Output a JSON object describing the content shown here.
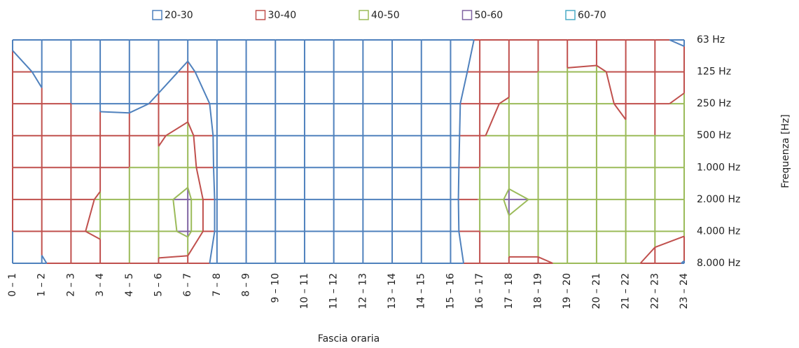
{
  "chart_data": {
    "type": "contour",
    "x_label": "Fascia oraria",
    "y_label": "Frequenza   [Hz]",
    "categories": [
      "0 – 1",
      "1 – 2",
      "2 – 3",
      "3 – 4",
      "4 – 5",
      "5 – 6",
      "6 – 7",
      "7 – 8",
      "8 – 9",
      "9 – 10",
      "10 – 11",
      "11 – 12",
      "12 – 13",
      "13 – 14",
      "14 – 15",
      "15 – 16",
      "16 – 17",
      "17 – 18",
      "18 – 19",
      "19 – 20",
      "20 – 21",
      "21 – 22",
      "22 – 23",
      "23 – 24"
    ],
    "y_categories": [
      "63 Hz",
      "125 Hz",
      "250 Hz",
      "500 Hz",
      "1.000 Hz",
      "2.000 Hz",
      "4.000 Hz",
      "8.000 Hz"
    ],
    "levels": [
      20,
      30,
      40,
      50,
      60,
      70
    ],
    "series": [
      {
        "name": "20-30",
        "color": "#4f81bd"
      },
      {
        "name": "30-40",
        "color": "#c0504d"
      },
      {
        "name": "40-50",
        "color": "#9bbb59"
      },
      {
        "name": "50-60",
        "color": "#8064a2"
      },
      {
        "name": "60-70",
        "color": "#4bacc6"
      }
    ],
    "z": [
      [
        29,
        28,
        27,
        27,
        27,
        27,
        28,
        26,
        25,
        25,
        25,
        25,
        25,
        25,
        25,
        26,
        31,
        32,
        33,
        33,
        32,
        30,
        31,
        29
      ],
      [
        32,
        29,
        28,
        28,
        30,
        28,
        31,
        27,
        25,
        25,
        25,
        25,
        25,
        25,
        25,
        26,
        33,
        36,
        40,
        41,
        42,
        36,
        35,
        34
      ],
      [
        33,
        31,
        30,
        29,
        28,
        31,
        36,
        28,
        25,
        25,
        25,
        25,
        25,
        25,
        25,
        26,
        38,
        41,
        43,
        45,
        43,
        38,
        37,
        43
      ],
      [
        34,
        33,
        33,
        33,
        35,
        39,
        43,
        28,
        25,
        25,
        25,
        25,
        25,
        25,
        25,
        26,
        39,
        44,
        46,
        47,
        45,
        42,
        40,
        41
      ],
      [
        35,
        35,
        35,
        37,
        40,
        42,
        45,
        28,
        25,
        25,
        25,
        25,
        25,
        25,
        25,
        26,
        40,
        46,
        48,
        47,
        46,
        45,
        44,
        45
      ],
      [
        34,
        35,
        36,
        41,
        44,
        47,
        53,
        28,
        25,
        25,
        25,
        25,
        25,
        25,
        25,
        26,
        41,
        52,
        49,
        46,
        45,
        44,
        43,
        42
      ],
      [
        30,
        33,
        39,
        41,
        42,
        45,
        53,
        28,
        25,
        25,
        25,
        25,
        25,
        25,
        25,
        26,
        40,
        48,
        44,
        44,
        43,
        42,
        41,
        42
      ],
      [
        28,
        29,
        35,
        37,
        40,
        39,
        36,
        28,
        25,
        25,
        25,
        25,
        25,
        25,
        25,
        26,
        35,
        38,
        39,
        41,
        41,
        41,
        39,
        29
      ]
    ]
  }
}
